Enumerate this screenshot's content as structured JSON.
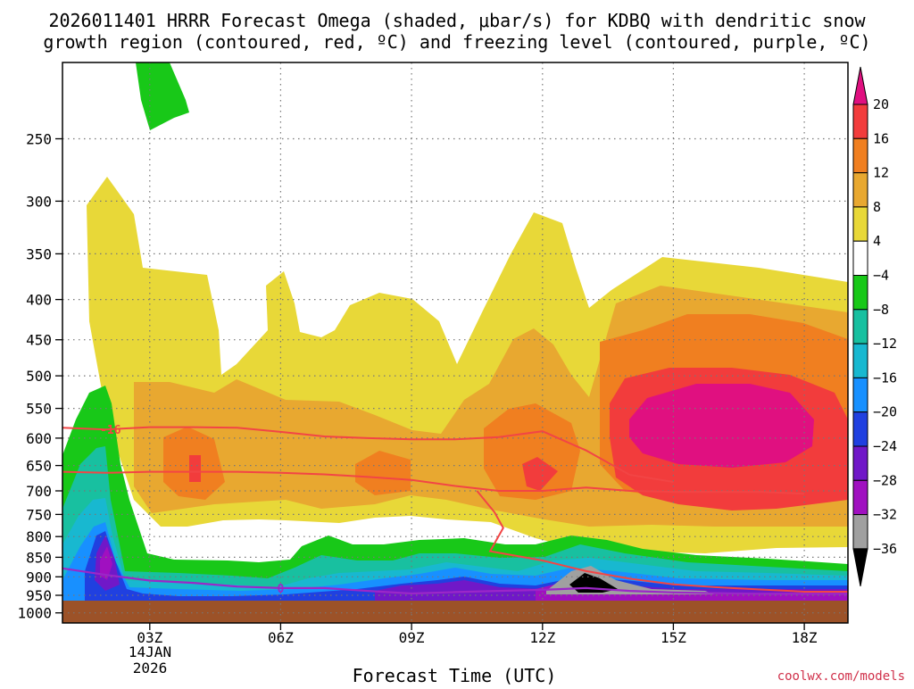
{
  "chart_data": {
    "type": "heatmap",
    "title_lines": [
      "2026011401 HRRR Forecast Omega (shaded, μbar/s) for KDBQ with dendritic snow",
      "growth region (contoured, red, ºC) and freezing level (contoured, purple, ºC)"
    ],
    "xlabel": "Forecast Time (UTC)",
    "x_ticks": [
      "03Z",
      "06Z",
      "09Z",
      "12Z",
      "15Z",
      "18Z"
    ],
    "x_tick_hours": [
      3,
      6,
      9,
      12,
      15,
      18
    ],
    "x_range_hours": [
      1,
      19
    ],
    "date_label_lines": [
      "14JAN",
      "2026"
    ],
    "y_ticks": [
      250,
      300,
      350,
      400,
      450,
      500,
      550,
      600,
      650,
      700,
      750,
      800,
      850,
      900,
      950,
      1000
    ],
    "y_range_hPa": [
      200,
      1030
    ],
    "surface_level_hPa": 965,
    "colorbar": {
      "tick_labels": [
        "20",
        "16",
        "12",
        "8",
        "4",
        "−4",
        "−8",
        "−12",
        "−16",
        "−20",
        "−24",
        "−28",
        "−32",
        "−36"
      ],
      "colors": [
        "#e01080",
        "#f23c3c",
        "#f07f20",
        "#e8a830",
        "#e8d838",
        "#ffffff",
        "#18c818",
        "#18c0a0",
        "#18b8d0",
        "#1890ff",
        "#2040e0",
        "#7018c8",
        "#a010c0",
        "#a0a0a0",
        "#000000"
      ]
    },
    "contour_labels": [
      "-16",
      "0"
    ],
    "contours": {
      "dendritic_minus12_hPa": [
        [
          1,
          662
        ],
        [
          2,
          664
        ],
        [
          3,
          662
        ],
        [
          4,
          662
        ],
        [
          5,
          662
        ],
        [
          6,
          664
        ],
        [
          7,
          667
        ],
        [
          8,
          672
        ],
        [
          9,
          678
        ],
        [
          10,
          690
        ],
        [
          11,
          700
        ],
        [
          12,
          700
        ],
        [
          13,
          693
        ],
        [
          14,
          700
        ],
        [
          15,
          702
        ],
        [
          16,
          702
        ],
        [
          17,
          702
        ],
        [
          18,
          706
        ]
      ],
      "dendritic_minus16_hPa": [
        [
          1,
          582
        ],
        [
          2,
          585
        ],
        [
          3,
          581
        ],
        [
          4,
          581
        ],
        [
          5,
          582
        ],
        [
          6,
          589
        ],
        [
          7,
          597
        ],
        [
          8,
          600
        ],
        [
          9,
          602
        ],
        [
          10,
          602
        ],
        [
          11,
          598
        ],
        [
          12,
          588
        ],
        [
          13,
          622
        ],
        [
          14,
          668
        ],
        [
          15,
          682
        ]
      ],
      "dendritic_joined_hPa": [
        [
          10.5,
          700
        ],
        [
          10.9,
          745
        ],
        [
          11.1,
          780
        ],
        [
          10.8,
          835
        ],
        [
          12,
          858
        ],
        [
          13,
          885
        ],
        [
          14,
          905
        ],
        [
          15,
          920
        ],
        [
          16,
          928
        ],
        [
          17,
          934
        ],
        [
          18,
          940
        ],
        [
          19,
          940
        ]
      ],
      "freezing_0C_hPa": [
        [
          1,
          878
        ],
        [
          2,
          895
        ],
        [
          3,
          910
        ],
        [
          4,
          916
        ],
        [
          5,
          926
        ],
        [
          6,
          930
        ],
        [
          7,
          930
        ],
        [
          8,
          938
        ],
        [
          9,
          945
        ],
        [
          10,
          941
        ],
        [
          11,
          938
        ],
        [
          12,
          935
        ],
        [
          13,
          930
        ],
        [
          14,
          938
        ],
        [
          15,
          942
        ],
        [
          16,
          944
        ],
        [
          17,
          946
        ],
        [
          18,
          946
        ],
        [
          19,
          946
        ]
      ]
    }
  },
  "footer": {
    "credit": "coolwx.com/models"
  }
}
